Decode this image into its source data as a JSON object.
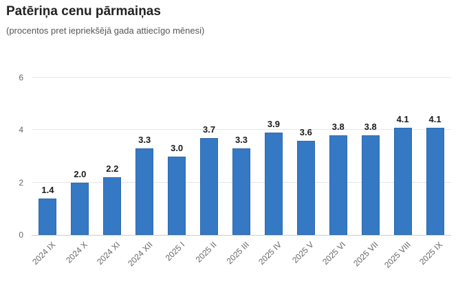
{
  "title": "Patēriņa cenu pārmaiņas",
  "subtitle": "(procentos pret iepriekšējā gada attiecīgo mēnesi)",
  "chart_data": {
    "type": "bar",
    "title": "Patēriņa cenu pārmaiņas",
    "subtitle": "(procentos pret iepriekšējā gada attiecīgo mēnesi)",
    "categories": [
      "2024 IX",
      "2024 X",
      "2024 XI",
      "2024 XII",
      "2025 I",
      "2025 II",
      "2025 III",
      "2025 IV",
      "2025 V",
      "2025 VI",
      "2025 VII",
      "2025 VIII",
      "2025 IX"
    ],
    "values": [
      1.4,
      2.0,
      2.2,
      3.3,
      3.0,
      3.7,
      3.3,
      3.9,
      3.6,
      3.8,
      3.8,
      4.1,
      4.1
    ],
    "value_labels": [
      "1.4",
      "2.0",
      "2.2",
      "3.3",
      "3.0",
      "3.7",
      "3.3",
      "3.9",
      "3.6",
      "3.8",
      "3.8",
      "4.1",
      "4.1"
    ],
    "xlabel": "",
    "ylabel": "",
    "ylim": [
      0,
      6
    ],
    "yticks": [
      0,
      2,
      4,
      6
    ],
    "grid": true,
    "legend": "none",
    "x_label_rotation_deg": -45
  },
  "colors": {
    "bar_fill": "#3579C4",
    "bar_border": "#2d69ad",
    "gridline": "#e6e6e6",
    "axis_line": "#cccccc",
    "title_text": "#222222",
    "subtitle_text": "#555555",
    "axis_label_text": "#666666",
    "value_label_text": "#1a1a1a",
    "background": "#ffffff"
  }
}
